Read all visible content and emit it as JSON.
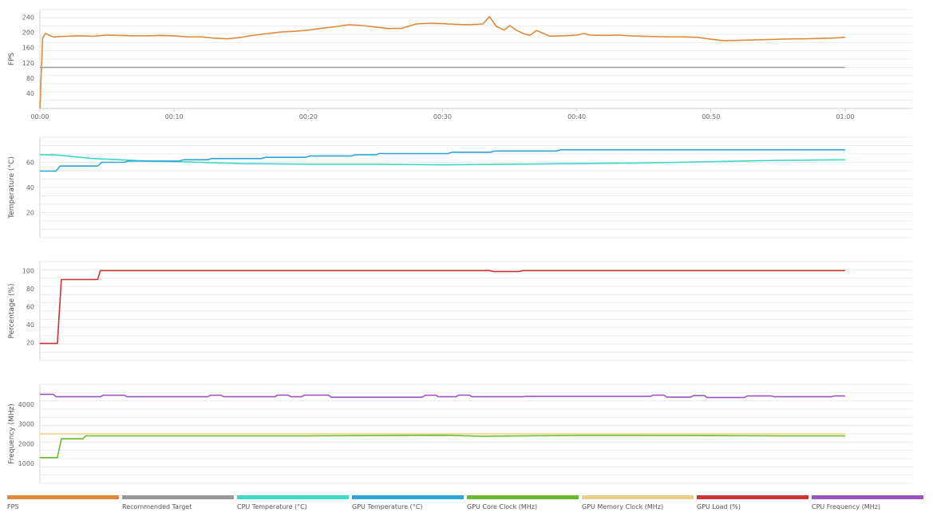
{
  "chart_data": [
    {
      "type": "line",
      "ylabel": "FPS",
      "ylim": [
        0,
        260
      ],
      "yticks": [
        40,
        80,
        120,
        160,
        200,
        240
      ],
      "xlim": [
        0,
        65
      ],
      "xticks": [
        {
          "value": 0,
          "label": "00:00"
        },
        {
          "value": 10,
          "label": "00:10"
        },
        {
          "value": 20,
          "label": "00:20"
        },
        {
          "value": 30,
          "label": "00:30"
        },
        {
          "value": 40,
          "label": "00:40"
        },
        {
          "value": 50,
          "label": "00:50"
        },
        {
          "value": 60,
          "label": "01:00"
        }
      ],
      "grid": true,
      "series": [
        {
          "name": "FPS",
          "color": "#e08a3a",
          "x": [
            0,
            0.2,
            0.4,
            1,
            2,
            3,
            4,
            5,
            6,
            7,
            8,
            9,
            10,
            11,
            12,
            13,
            14,
            15,
            16,
            17,
            18,
            19,
            20,
            21,
            22,
            23,
            24,
            25,
            26,
            27,
            28,
            29,
            30,
            31,
            32,
            33,
            33.5,
            34,
            34.6,
            35,
            35.5,
            36,
            36.5,
            37,
            38,
            39,
            40,
            40.5,
            41,
            42,
            43,
            44,
            45,
            46,
            47,
            48,
            49,
            50,
            51,
            52,
            53,
            54,
            55,
            56,
            57,
            58,
            59,
            60
          ],
          "y": [
            0,
            185,
            197,
            188,
            190,
            191,
            190,
            193,
            192,
            191,
            191,
            192,
            191,
            188,
            188,
            185,
            183,
            187,
            193,
            197,
            201,
            203,
            206,
            211,
            215,
            220,
            218,
            214,
            210,
            211,
            222,
            224,
            223,
            221,
            220,
            222,
            242,
            216,
            206,
            218,
            206,
            197,
            192,
            205,
            190,
            191,
            193,
            197,
            193,
            192,
            193,
            191,
            190,
            189,
            188,
            188,
            187,
            182,
            178,
            179,
            180,
            181,
            182,
            183,
            183,
            184,
            185,
            187
          ]
        },
        {
          "name": "Recommended Target",
          "color": "#9a9a9a",
          "x": [
            0,
            60
          ],
          "y": [
            108,
            108
          ]
        }
      ]
    },
    {
      "type": "line",
      "ylabel": "Temperature (°C)",
      "ylim": [
        0,
        80
      ],
      "yticks": [
        20,
        40,
        60
      ],
      "xlim": [
        0,
        65
      ],
      "grid": true,
      "series": [
        {
          "name": "CPU Temperature (°C)",
          "color": "#3fd8c4",
          "x": [
            0,
            1,
            2,
            3,
            4,
            5,
            6,
            8,
            10,
            12,
            15,
            20,
            25,
            30,
            35,
            40,
            45,
            50,
            55,
            60
          ],
          "y": [
            66,
            66,
            65,
            64,
            63,
            62.5,
            62,
            61,
            60.5,
            60,
            59,
            58.5,
            58.5,
            58,
            58.5,
            59,
            59.5,
            60.5,
            61.5,
            62
          ]
        },
        {
          "name": "GPU Temperature (°C)",
          "color": "#2ea5d8",
          "x": [
            0,
            1.2,
            1.5,
            4.3,
            4.6,
            6.3,
            6.6,
            10.4,
            10.7,
            12.5,
            12.8,
            16.5,
            16.8,
            19.8,
            20.1,
            23.2,
            23.5,
            25,
            25.3,
            30.4,
            30.7,
            33.6,
            33.9,
            38.5,
            38.8,
            60
          ],
          "y": [
            53,
            53,
            57,
            57,
            60,
            60,
            61,
            61,
            62,
            62,
            63,
            63,
            64,
            64,
            65,
            65,
            66,
            66,
            67,
            67,
            68,
            68,
            69,
            69,
            70,
            70
          ]
        }
      ]
    },
    {
      "type": "line",
      "ylabel": "Percentage (%)",
      "ylim": [
        0,
        110
      ],
      "yticks": [
        20,
        40,
        60,
        80,
        100
      ],
      "xlim": [
        0,
        65
      ],
      "grid": true,
      "series": [
        {
          "name": "GPU Load (%)",
          "color": "#cc3333",
          "x": [
            0,
            1.3,
            1.6,
            4.3,
            4.5,
            33.5,
            33.8,
            35.7,
            36,
            60
          ],
          "y": [
            19,
            19,
            90,
            90,
            100,
            100,
            99,
            99,
            100,
            100
          ]
        }
      ]
    },
    {
      "type": "line",
      "ylabel": "Frequency (MHz)",
      "ylim": [
        0,
        5000
      ],
      "yticks": [
        1000,
        2000,
        3000,
        4000
      ],
      "xlim": [
        0,
        65
      ],
      "grid": true,
      "series": [
        {
          "name": "GPU Core Clock (MHz)",
          "color": "#6ab82e",
          "x": [
            0,
            1.3,
            1.6,
            3.2,
            3.4,
            10,
            20,
            30,
            33,
            36,
            40,
            45,
            50,
            55,
            60
          ],
          "y": [
            1300,
            1300,
            2250,
            2250,
            2400,
            2400,
            2400,
            2430,
            2380,
            2400,
            2420,
            2420,
            2410,
            2400,
            2400
          ]
        },
        {
          "name": "GPU Memory Clock (MHz)",
          "color": "#e8d08a",
          "x": [
            0,
            60
          ],
          "y": [
            2500,
            2500
          ]
        },
        {
          "name": "CPU Frequency (MHz)",
          "color": "#9a55c0",
          "x": [
            0,
            1,
            1.2,
            4.5,
            4.7,
            6.3,
            6.5,
            12.5,
            12.7,
            13.5,
            13.7,
            17.5,
            17.7,
            18.5,
            18.7,
            19.5,
            19.7,
            21.5,
            21.7,
            28.5,
            28.7,
            29.5,
            29.7,
            31,
            31.2,
            32,
            32.2,
            36,
            36.2,
            45.5,
            45.7,
            46.5,
            46.7,
            48.5,
            48.7,
            49.5,
            49.7,
            52.5,
            52.7,
            54.5,
            54.7,
            59,
            59.2,
            60
          ],
          "y": [
            4500,
            4500,
            4380,
            4380,
            4450,
            4450,
            4380,
            4380,
            4450,
            4450,
            4380,
            4380,
            4460,
            4460,
            4380,
            4380,
            4460,
            4460,
            4350,
            4350,
            4450,
            4450,
            4380,
            4380,
            4460,
            4460,
            4380,
            4380,
            4400,
            4400,
            4460,
            4460,
            4360,
            4360,
            4440,
            4440,
            4340,
            4340,
            4420,
            4420,
            4380,
            4380,
            4420,
            4420
          ]
        }
      ]
    }
  ],
  "legend": [
    {
      "label": "FPS",
      "color": "#e08a3a"
    },
    {
      "label": "Recommended Target",
      "color": "#9a9a9a"
    },
    {
      "label": "CPU Temperature (°C)",
      "color": "#3fd8c4"
    },
    {
      "label": "GPU Temperature (°C)",
      "color": "#2ea5d8"
    },
    {
      "label": "GPU Core Clock (MHz)",
      "color": "#6ab82e"
    },
    {
      "label": "GPU Memory Clock (MHz)",
      "color": "#e8d08a"
    },
    {
      "label": "GPU Load (%)",
      "color": "#cc3333"
    },
    {
      "label": "CPU Frequency (MHz)",
      "color": "#9a55c0"
    }
  ]
}
